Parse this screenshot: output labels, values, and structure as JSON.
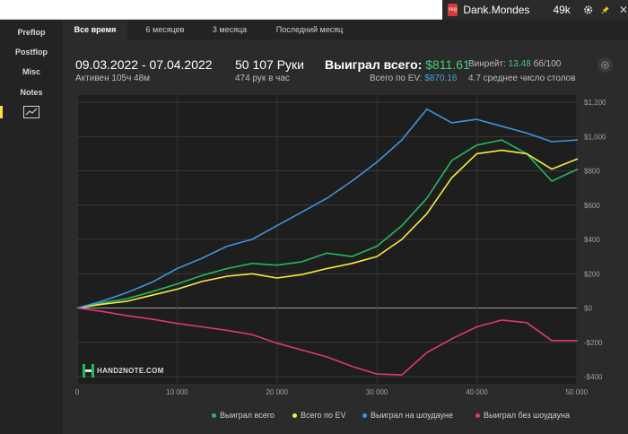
{
  "player": {
    "badge": "reg",
    "name": "Dank.Mondes",
    "hands": "49k"
  },
  "sidebar": {
    "items": [
      {
        "label": "Preflop"
      },
      {
        "label": "Postflop"
      },
      {
        "label": "Misc"
      },
      {
        "label": "Notes"
      }
    ]
  },
  "tabs": [
    {
      "label": "Все время",
      "active": true
    },
    {
      "label": "6 месяцев"
    },
    {
      "label": "3 месяца"
    },
    {
      "label": "Последний месяц"
    }
  ],
  "stats": {
    "date_range": "09.03.2022 - 07.04.2022",
    "active_time": "Активен 105ч 48м",
    "hands": "50 107 Руки",
    "hands_per_hour": "474 рук в час",
    "won_label": "Выиграл всего:",
    "won_value": "$811.61",
    "ev_label": "Всего по EV:",
    "ev_value": "$870.16",
    "winrate_label": "Винрейт:",
    "winrate_value": "13.48",
    "winrate_unit": "бб/100",
    "avg_tables": "4.7 среднее число столов"
  },
  "logo_text": "HAND2NOTE.COM",
  "colors": {
    "green": "#22b862",
    "yellow": "#f5ee3c",
    "blue": "#3f93e0",
    "pink": "#e0386e"
  },
  "chart_data": {
    "type": "line",
    "xlim": [
      0,
      50107
    ],
    "ylim": [
      -400,
      1200
    ],
    "x_ticks": [
      0,
      10000,
      20000,
      30000,
      40000,
      50000
    ],
    "x_tick_labels": [
      "0",
      "10 000",
      "20 000",
      "30 000",
      "40 000",
      "50 000"
    ],
    "y_ticks": [
      -400,
      -200,
      0,
      200,
      400,
      600,
      800,
      1000,
      1200
    ],
    "y_tick_labels": [
      "-$400",
      "-$200",
      "$0",
      "$200",
      "$400",
      "$600",
      "$800",
      "$1,000",
      "$1,200"
    ],
    "grid": true,
    "legend_position": "bottom-right",
    "x": [
      0,
      2500,
      5000,
      7500,
      10000,
      12500,
      15000,
      17500,
      20000,
      22500,
      25000,
      27500,
      30000,
      32500,
      35000,
      37500,
      40000,
      42500,
      45000,
      47500,
      50107
    ],
    "series": [
      {
        "name": "Выиграл всего",
        "color": "#22b862",
        "values": [
          0,
          30,
          55,
          95,
          140,
          190,
          230,
          260,
          250,
          270,
          320,
          300,
          360,
          480,
          640,
          860,
          950,
          980,
          900,
          740,
          810
        ]
      },
      {
        "name": "Всего по EV",
        "color": "#f5ee3c",
        "values": [
          0,
          22,
          40,
          75,
          110,
          155,
          185,
          200,
          175,
          195,
          230,
          260,
          300,
          400,
          550,
          760,
          900,
          920,
          900,
          810,
          870
        ]
      },
      {
        "name": "Выиграл на шоудауне",
        "color": "#3f93e0",
        "values": [
          0,
          40,
          90,
          150,
          230,
          290,
          360,
          400,
          480,
          560,
          640,
          740,
          850,
          980,
          1160,
          1080,
          1100,
          1060,
          1020,
          970,
          980
        ]
      },
      {
        "name": "Выиграл без шоудауна",
        "color": "#e0386e",
        "values": [
          0,
          -20,
          -45,
          -65,
          -90,
          -110,
          -130,
          -155,
          -205,
          -245,
          -285,
          -340,
          -385,
          -390,
          -260,
          -180,
          -110,
          -70,
          -85,
          -190,
          -190
        ]
      }
    ]
  }
}
